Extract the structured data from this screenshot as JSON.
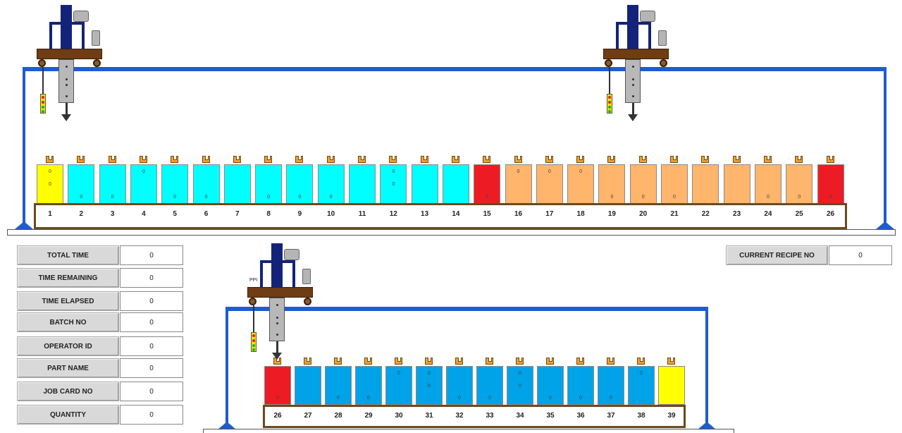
{
  "colors": {
    "rail": "#1f5ccf",
    "crane_frame": "#13237a",
    "crane_beam": "#6e3d14",
    "tank_yellow": "#ffff00",
    "tank_cyan": "#00ffff",
    "tank_red": "#ed1c24",
    "tank_orange": "#ffb56b",
    "tank_blue": "#00a2e8",
    "number_frame": "#6b4a1e"
  },
  "line1": {
    "tanks": [
      {
        "no": "1",
        "color": "yellow",
        "v1": "0",
        "v2": "0",
        "v3": ""
      },
      {
        "no": "2",
        "color": "cyan",
        "v1": "",
        "v2": "",
        "v3": "0"
      },
      {
        "no": "3",
        "color": "cyan",
        "v1": "",
        "v2": "",
        "v3": "0"
      },
      {
        "no": "4",
        "color": "cyan",
        "v1": "0",
        "v2": "",
        "v3": ""
      },
      {
        "no": "5",
        "color": "cyan",
        "v1": "",
        "v2": "",
        "v3": "0"
      },
      {
        "no": "6",
        "color": "cyan",
        "v1": "",
        "v2": "",
        "v3": "0"
      },
      {
        "no": "7",
        "color": "cyan",
        "v1": "",
        "v2": "",
        "v3": ""
      },
      {
        "no": "8",
        "color": "cyan",
        "v1": "",
        "v2": "",
        "v3": "0"
      },
      {
        "no": "9",
        "color": "cyan",
        "v1": "",
        "v2": "",
        "v3": "0"
      },
      {
        "no": "10",
        "color": "cyan",
        "v1": "",
        "v2": "",
        "v3": "0"
      },
      {
        "no": "11",
        "color": "cyan",
        "v1": "",
        "v2": "",
        "v3": ""
      },
      {
        "no": "12",
        "color": "cyan",
        "v1": "0",
        "v2": "0",
        "v3": ""
      },
      {
        "no": "13",
        "color": "cyan",
        "v1": "",
        "v2": "",
        "v3": ""
      },
      {
        "no": "14",
        "color": "cyan",
        "v1": "",
        "v2": "",
        "v3": ""
      },
      {
        "no": "15",
        "color": "red",
        "v1": "",
        "v2": "",
        "v3": "0"
      },
      {
        "no": "16",
        "color": "orange",
        "v1": "0",
        "v2": "",
        "v3": ""
      },
      {
        "no": "17",
        "color": "orange",
        "v1": "0",
        "v2": "",
        "v3": ""
      },
      {
        "no": "18",
        "color": "orange",
        "v1": "0",
        "v2": "",
        "v3": ""
      },
      {
        "no": "19",
        "color": "orange",
        "v1": "",
        "v2": "",
        "v3": "0"
      },
      {
        "no": "20",
        "color": "orange",
        "v1": "",
        "v2": "",
        "v3": "0"
      },
      {
        "no": "21",
        "color": "orange",
        "v1": "",
        "v2": "",
        "v3": "0"
      },
      {
        "no": "22",
        "color": "orange",
        "v1": "",
        "v2": "",
        "v3": ""
      },
      {
        "no": "23",
        "color": "orange",
        "v1": "",
        "v2": "",
        "v3": ""
      },
      {
        "no": "24",
        "color": "orange",
        "v1": "",
        "v2": "",
        "v3": "0"
      },
      {
        "no": "25",
        "color": "orange",
        "v1": "",
        "v2": "",
        "v3": "0"
      },
      {
        "no": "26",
        "color": "red",
        "v1": "",
        "v2": "",
        "v3": "0"
      }
    ]
  },
  "line2": {
    "crane_tag": "PPI",
    "tanks": [
      {
        "no": "26",
        "color": "red",
        "v1": "",
        "v2": "",
        "v3": "0"
      },
      {
        "no": "27",
        "color": "blue",
        "v1": "",
        "v2": "",
        "v3": ""
      },
      {
        "no": "28",
        "color": "blue",
        "v1": "",
        "v2": "",
        "v3": "0"
      },
      {
        "no": "29",
        "color": "blue",
        "v1": "",
        "v2": "",
        "v3": "0"
      },
      {
        "no": "30",
        "color": "blue",
        "v1": "0",
        "v2": "",
        "v3": ""
      },
      {
        "no": "31",
        "color": "blue",
        "v1": "0",
        "v2": "0",
        "v3": ""
      },
      {
        "no": "32",
        "color": "blue",
        "v1": "",
        "v2": "",
        "v3": "0"
      },
      {
        "no": "33",
        "color": "blue",
        "v1": "",
        "v2": "",
        "v3": "0"
      },
      {
        "no": "34",
        "color": "blue",
        "v1": "0",
        "v2": "0",
        "v3": ""
      },
      {
        "no": "35",
        "color": "blue",
        "v1": "",
        "v2": "",
        "v3": "0"
      },
      {
        "no": "36",
        "color": "blue",
        "v1": "",
        "v2": "",
        "v3": "0"
      },
      {
        "no": "37",
        "color": "blue",
        "v1": "",
        "v2": "",
        "v3": "0"
      },
      {
        "no": "38",
        "color": "blue",
        "v1": "0",
        "v2": "",
        "v3": ""
      },
      {
        "no": "39",
        "color": "yellow",
        "v1": "",
        "v2": "",
        "v3": ""
      }
    ]
  },
  "info_fields": [
    {
      "label": "TOTAL TIME",
      "value": "0"
    },
    {
      "label": "TIME REMAINING",
      "value": "0"
    },
    {
      "label": "TIME ELAPSED",
      "value": "0"
    },
    {
      "label": "BATCH NO",
      "value": "0"
    },
    {
      "label": "OPERATOR ID",
      "value": "0"
    },
    {
      "label": "PART NAME",
      "value": "0"
    },
    {
      "label": "JOB CARD NO",
      "value": "0"
    },
    {
      "label": "QUANTITY",
      "value": "0"
    }
  ],
  "recipe": {
    "label": "CURRENT RECIPE NO",
    "value": "0"
  }
}
